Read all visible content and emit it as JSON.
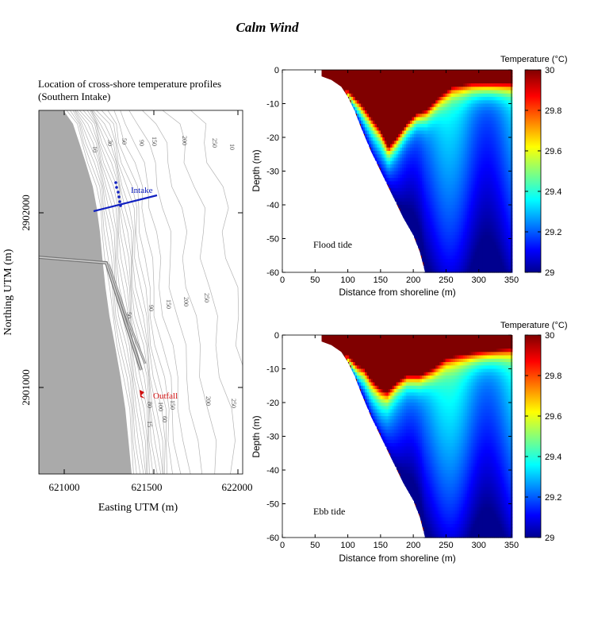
{
  "figure": {
    "title": "Calm Wind"
  },
  "map": {
    "title_line1": "Location of cross-shore temperature profiles",
    "title_line2": "(Southern Intake)",
    "xlabel": "Easting UTM (m)",
    "ylabel": "Northing UTM (m)",
    "xticks": [
      "621000",
      "621500",
      "622000"
    ],
    "yticks": [
      "2902000",
      "2901000"
    ],
    "intake_label": "Intake",
    "outfall_label": "Outfall",
    "contour_labels": [
      "10",
      "30",
      "50",
      "90",
      "150",
      "200",
      "250",
      "10",
      "50",
      "90",
      "150",
      "200",
      "250",
      "100",
      "80",
      "60",
      "15",
      "150",
      "200",
      "250"
    ],
    "colors": {
      "land": "#aaaaaa",
      "contour": "#b4b4b4",
      "intake": "#1020c0",
      "outfall": "#d01010"
    }
  },
  "colorbar": {
    "label": "Temperature (°C)",
    "ticks": [
      "30",
      "29.8",
      "29.6",
      "29.4",
      "29.2",
      "29"
    ],
    "min": 29,
    "max": 30,
    "colormap": "jet"
  },
  "chart_data": [
    {
      "type": "heatmap",
      "panel_label": "Flood tide",
      "xlabel": "Distance from shoreline (m)",
      "ylabel": "Depth (m)",
      "xlim": [
        0,
        350
      ],
      "ylim": [
        -60,
        0
      ],
      "xticks": [
        "0",
        "50",
        "100",
        "150",
        "200",
        "250",
        "300",
        "350"
      ],
      "yticks": [
        "0",
        "-10",
        "-20",
        "-30",
        "-40",
        "-50",
        "-60"
      ],
      "colorbar_range": [
        29,
        30
      ],
      "bottom_profile": [
        [
          0,
          0
        ],
        [
          25,
          -0.3
        ],
        [
          50,
          -1.2
        ],
        [
          75,
          -3
        ],
        [
          90,
          -5
        ],
        [
          100,
          -8
        ],
        [
          110,
          -12
        ],
        [
          120,
          -17
        ],
        [
          135,
          -24
        ],
        [
          150,
          -30
        ],
        [
          160,
          -34
        ],
        [
          170,
          -38
        ],
        [
          185,
          -44
        ],
        [
          200,
          -49
        ],
        [
          210,
          -54
        ],
        [
          218,
          -60
        ]
      ],
      "warm_layer_bottom": [
        [
          100,
          -6
        ],
        [
          120,
          -10
        ],
        [
          135,
          -14
        ],
        [
          150,
          -18
        ],
        [
          162,
          -23
        ],
        [
          175,
          -20
        ],
        [
          190,
          -16
        ],
        [
          205,
          -13
        ],
        [
          220,
          -12
        ],
        [
          240,
          -8
        ],
        [
          260,
          -5
        ],
        [
          290,
          -4
        ],
        [
          320,
          -4
        ],
        [
          350,
          -4
        ]
      ],
      "cold_water_temp_range": [
        29.0,
        29.3
      ]
    },
    {
      "type": "heatmap",
      "panel_label": "Ebb tide",
      "xlabel": "Distance from shoreline (m)",
      "ylabel": "Depth (m)",
      "xlim": [
        0,
        350
      ],
      "ylim": [
        -60,
        0
      ],
      "xticks": [
        "0",
        "50",
        "100",
        "150",
        "200",
        "250",
        "300",
        "350"
      ],
      "yticks": [
        "0",
        "-10",
        "-20",
        "-30",
        "-40",
        "-50",
        "-60"
      ],
      "colorbar_range": [
        29,
        30
      ],
      "bottom_profile": [
        [
          0,
          0
        ],
        [
          25,
          -0.3
        ],
        [
          50,
          -1.2
        ],
        [
          75,
          -3
        ],
        [
          90,
          -5
        ],
        [
          100,
          -8
        ],
        [
          110,
          -12
        ],
        [
          120,
          -17
        ],
        [
          135,
          -24
        ],
        [
          150,
          -30
        ],
        [
          160,
          -34
        ],
        [
          170,
          -38
        ],
        [
          185,
          -44
        ],
        [
          200,
          -49
        ],
        [
          210,
          -54
        ],
        [
          218,
          -60
        ]
      ],
      "warm_layer_bottom": [
        [
          100,
          -6
        ],
        [
          115,
          -9
        ],
        [
          125,
          -10
        ],
        [
          135,
          -13
        ],
        [
          150,
          -16
        ],
        [
          160,
          -17
        ],
        [
          175,
          -14
        ],
        [
          190,
          -12
        ],
        [
          210,
          -12
        ],
        [
          230,
          -10
        ],
        [
          250,
          -7
        ],
        [
          270,
          -6
        ],
        [
          300,
          -5
        ],
        [
          350,
          -4
        ]
      ],
      "cold_water_temp_range": [
        29.0,
        29.35
      ]
    }
  ]
}
